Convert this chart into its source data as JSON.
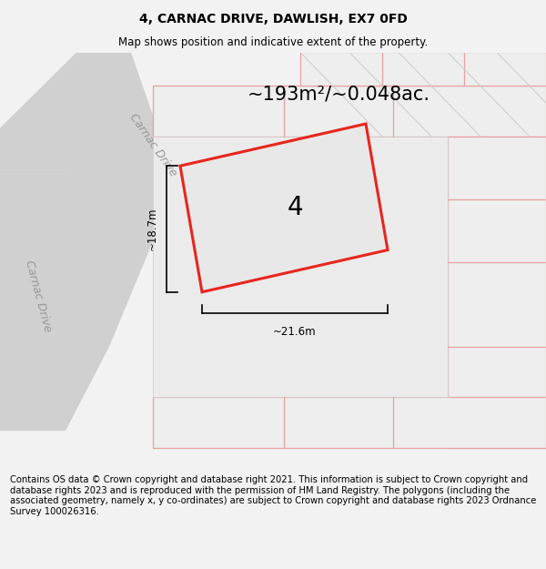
{
  "title": "4, CARNAC DRIVE, DAWLISH, EX7 0FD",
  "subtitle": "Map shows position and indicative extent of the property.",
  "area_text": "~193m²/~0.048ac.",
  "width_label": "~21.6m",
  "height_label": "~18.7m",
  "number_label": "4",
  "road_label_upper": "Carnac Drive",
  "road_label_lower": "Carnac Drive",
  "footer_text": "Contains OS data © Crown copyright and database right 2021. This information is subject to Crown copyright and database rights 2023 and is reproduced with the permission of HM Land Registry. The polygons (including the associated geometry, namely x, y co-ordinates) are subject to Crown copyright and database rights 2023 Ordnance Survey 100026316.",
  "bg_color": "#f2f2f2",
  "map_bg_color": "#ffffff",
  "gray_block_color": "#e0e0e0",
  "gray_road_color": "#d0d0d0",
  "plot_fill_color": "#e8e8e8",
  "plot_border_color": "#e8251e",
  "pink_line_color": "#e8a0a0",
  "title_fontsize": 10,
  "subtitle_fontsize": 8.5,
  "area_fontsize": 15,
  "number_fontsize": 20,
  "road_fontsize": 9,
  "footer_fontsize": 7.2,
  "annot_fontsize": 8.5
}
